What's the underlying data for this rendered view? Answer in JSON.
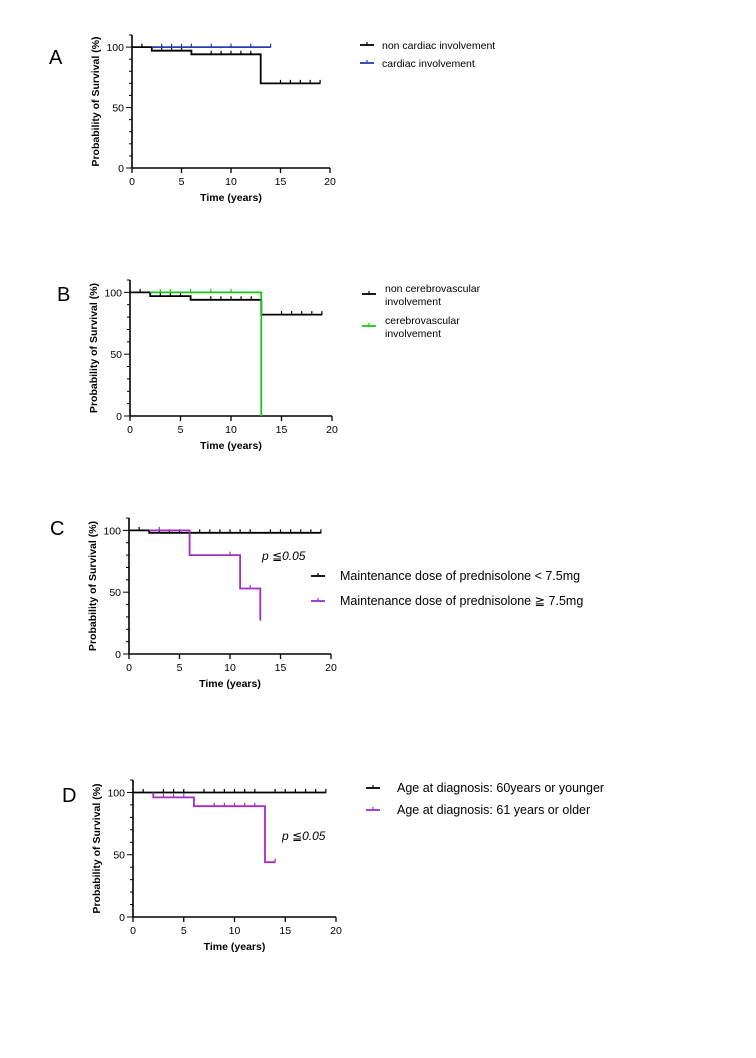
{
  "chart_data": [
    {
      "type": "line",
      "panel": "A",
      "xlabel": "Time (years)",
      "ylabel": "Probability of Survival (%)",
      "xlim": [
        0,
        20
      ],
      "ylim": [
        0,
        110
      ],
      "xticks": [
        "0",
        "5",
        "10",
        "15",
        "20"
      ],
      "yticks": [
        "0",
        "50",
        "100"
      ],
      "legend_position": "right",
      "annotation": "",
      "series": [
        {
          "name": "non cardiac involvement",
          "color": "#000000",
          "x": [
            0,
            2,
            2,
            6,
            6,
            13,
            13,
            19
          ],
          "y": [
            100,
            100,
            97,
            97,
            94,
            94,
            70,
            70
          ],
          "censored_x": [
            1,
            3,
            4,
            5,
            8,
            9,
            10,
            11,
            12,
            15,
            16,
            17,
            18,
            19
          ]
        },
        {
          "name": "cardiac involvement",
          "color": "#2a3bb5",
          "x": [
            2,
            14
          ],
          "y": [
            100,
            100
          ],
          "censored_x": [
            3,
            4,
            5,
            6,
            8,
            10,
            12,
            14
          ]
        }
      ]
    },
    {
      "type": "line",
      "panel": "B",
      "xlabel": "Time (years)",
      "ylabel": "Probability of Survival (%)",
      "xlim": [
        0,
        20
      ],
      "ylim": [
        0,
        110
      ],
      "xticks": [
        "0",
        "5",
        "10",
        "15",
        "20"
      ],
      "yticks": [
        "0",
        "50",
        "100"
      ],
      "legend_position": "right",
      "annotation": "",
      "series": [
        {
          "name": "non cerebrovascular involvement",
          "color": "#000000",
          "x": [
            0,
            2,
            2,
            6,
            6,
            13,
            13,
            19
          ],
          "y": [
            100,
            100,
            97,
            97,
            94,
            94,
            82,
            82
          ],
          "censored_x": [
            1,
            3,
            4,
            5,
            8,
            9,
            10,
            11,
            12,
            15,
            16,
            17,
            18,
            19
          ]
        },
        {
          "name": "cerebrovascular involvement",
          "color": "#17c617",
          "x": [
            2,
            13,
            13
          ],
          "y": [
            100,
            100,
            0
          ],
          "censored_x": [
            3,
            4,
            6,
            8,
            10
          ]
        }
      ]
    },
    {
      "type": "line",
      "panel": "C",
      "xlabel": "Time (years)",
      "ylabel": "Probability of Survival (%)",
      "xlim": [
        0,
        20
      ],
      "ylim": [
        0,
        110
      ],
      "xticks": [
        "0",
        "5",
        "10",
        "15",
        "20"
      ],
      "yticks": [
        "0",
        "50",
        "100"
      ],
      "legend_position": "right",
      "annotation": "p ≦0.05",
      "series": [
        {
          "name": "Maintenance dose of prednisolone < 7.5mg",
          "color": "#000000",
          "x": [
            0,
            2,
            2,
            19
          ],
          "y": [
            100,
            100,
            98,
            98
          ],
          "censored_x": [
            1,
            3,
            4,
            5,
            7,
            8,
            9,
            10,
            11,
            12,
            14,
            15,
            16,
            17,
            18,
            19
          ]
        },
        {
          "name": "Maintenance dose of prednisolone ≧ 7.5mg",
          "color": "#a42bc7",
          "x": [
            2,
            6,
            6,
            11,
            11,
            13,
            13
          ],
          "y": [
            100,
            100,
            80,
            80,
            53,
            53,
            27
          ],
          "censored_x": [
            3,
            10,
            12
          ]
        }
      ]
    },
    {
      "type": "line",
      "panel": "D",
      "xlabel": "Time (years)",
      "ylabel": "Probability of Survival (%)",
      "xlim": [
        0,
        20
      ],
      "ylim": [
        0,
        110
      ],
      "xticks": [
        "0",
        "5",
        "10",
        "15",
        "20"
      ],
      "yticks": [
        "0",
        "50",
        "100"
      ],
      "legend_position": "top-right",
      "annotation": "p ≦0.05",
      "series": [
        {
          "name": "Age at diagnosis: 60years or younger",
          "color": "#000000",
          "x": [
            0,
            19
          ],
          "y": [
            100,
            100
          ],
          "censored_x": [
            1,
            3,
            4,
            5,
            7,
            8,
            9,
            10,
            11,
            12,
            14,
            15,
            16,
            17,
            18,
            19
          ]
        },
        {
          "name": "Age at diagnosis: 61 years or older",
          "color": "#a42bc7",
          "x": [
            2,
            2,
            6,
            6,
            13,
            13,
            14
          ],
          "y": [
            100,
            96,
            96,
            89,
            89,
            44,
            44
          ],
          "censored_x": [
            3,
            4,
            5,
            8,
            9,
            10,
            11,
            12,
            14
          ]
        }
      ]
    }
  ]
}
